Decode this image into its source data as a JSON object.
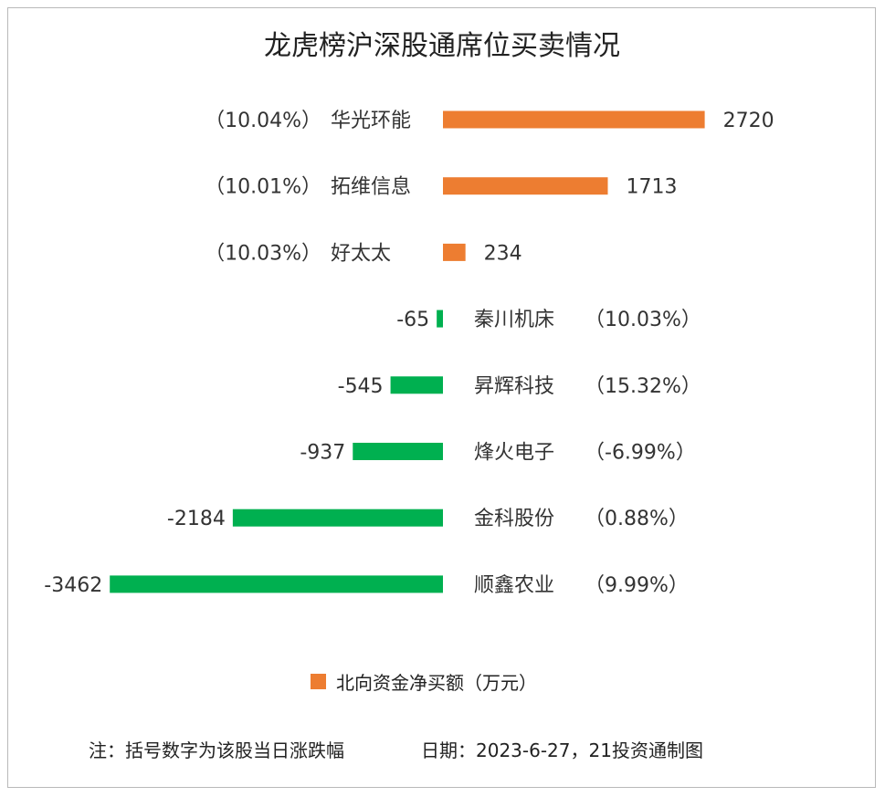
{
  "colors": {
    "positive": "#ED7D31",
    "negative": "#00B050"
  },
  "chart_data": {
    "type": "bar",
    "orientation": "horizontal",
    "title": "龙虎榜沪深股通席位买卖情况",
    "categories": [
      "华光环能",
      "拓维信息",
      "好太太",
      "秦川机床",
      "昇辉科技",
      "烽火电子",
      "金科股份",
      "顺鑫农业"
    ],
    "pct_labels": [
      "（10.04%）",
      "（10.01%）",
      "（10.03%）",
      "（10.03%）",
      "（15.32%）",
      "（-6.99%）",
      "（0.88%）",
      "（9.99%）"
    ],
    "values": [
      2720,
      1713,
      234,
      -65,
      -545,
      -937,
      -2184,
      -3462
    ],
    "value_labels": [
      "2720",
      "1713",
      "234",
      "-65",
      "-545",
      "-937",
      "-2184",
      "-3462"
    ],
    "legend": {
      "label": "北向资金净买额（万元）",
      "position": "bottom"
    }
  },
  "footer": {
    "note": "注：括号数字为该股当日涨跌幅",
    "date": "日期：2023-6-27，21投资通制图"
  }
}
